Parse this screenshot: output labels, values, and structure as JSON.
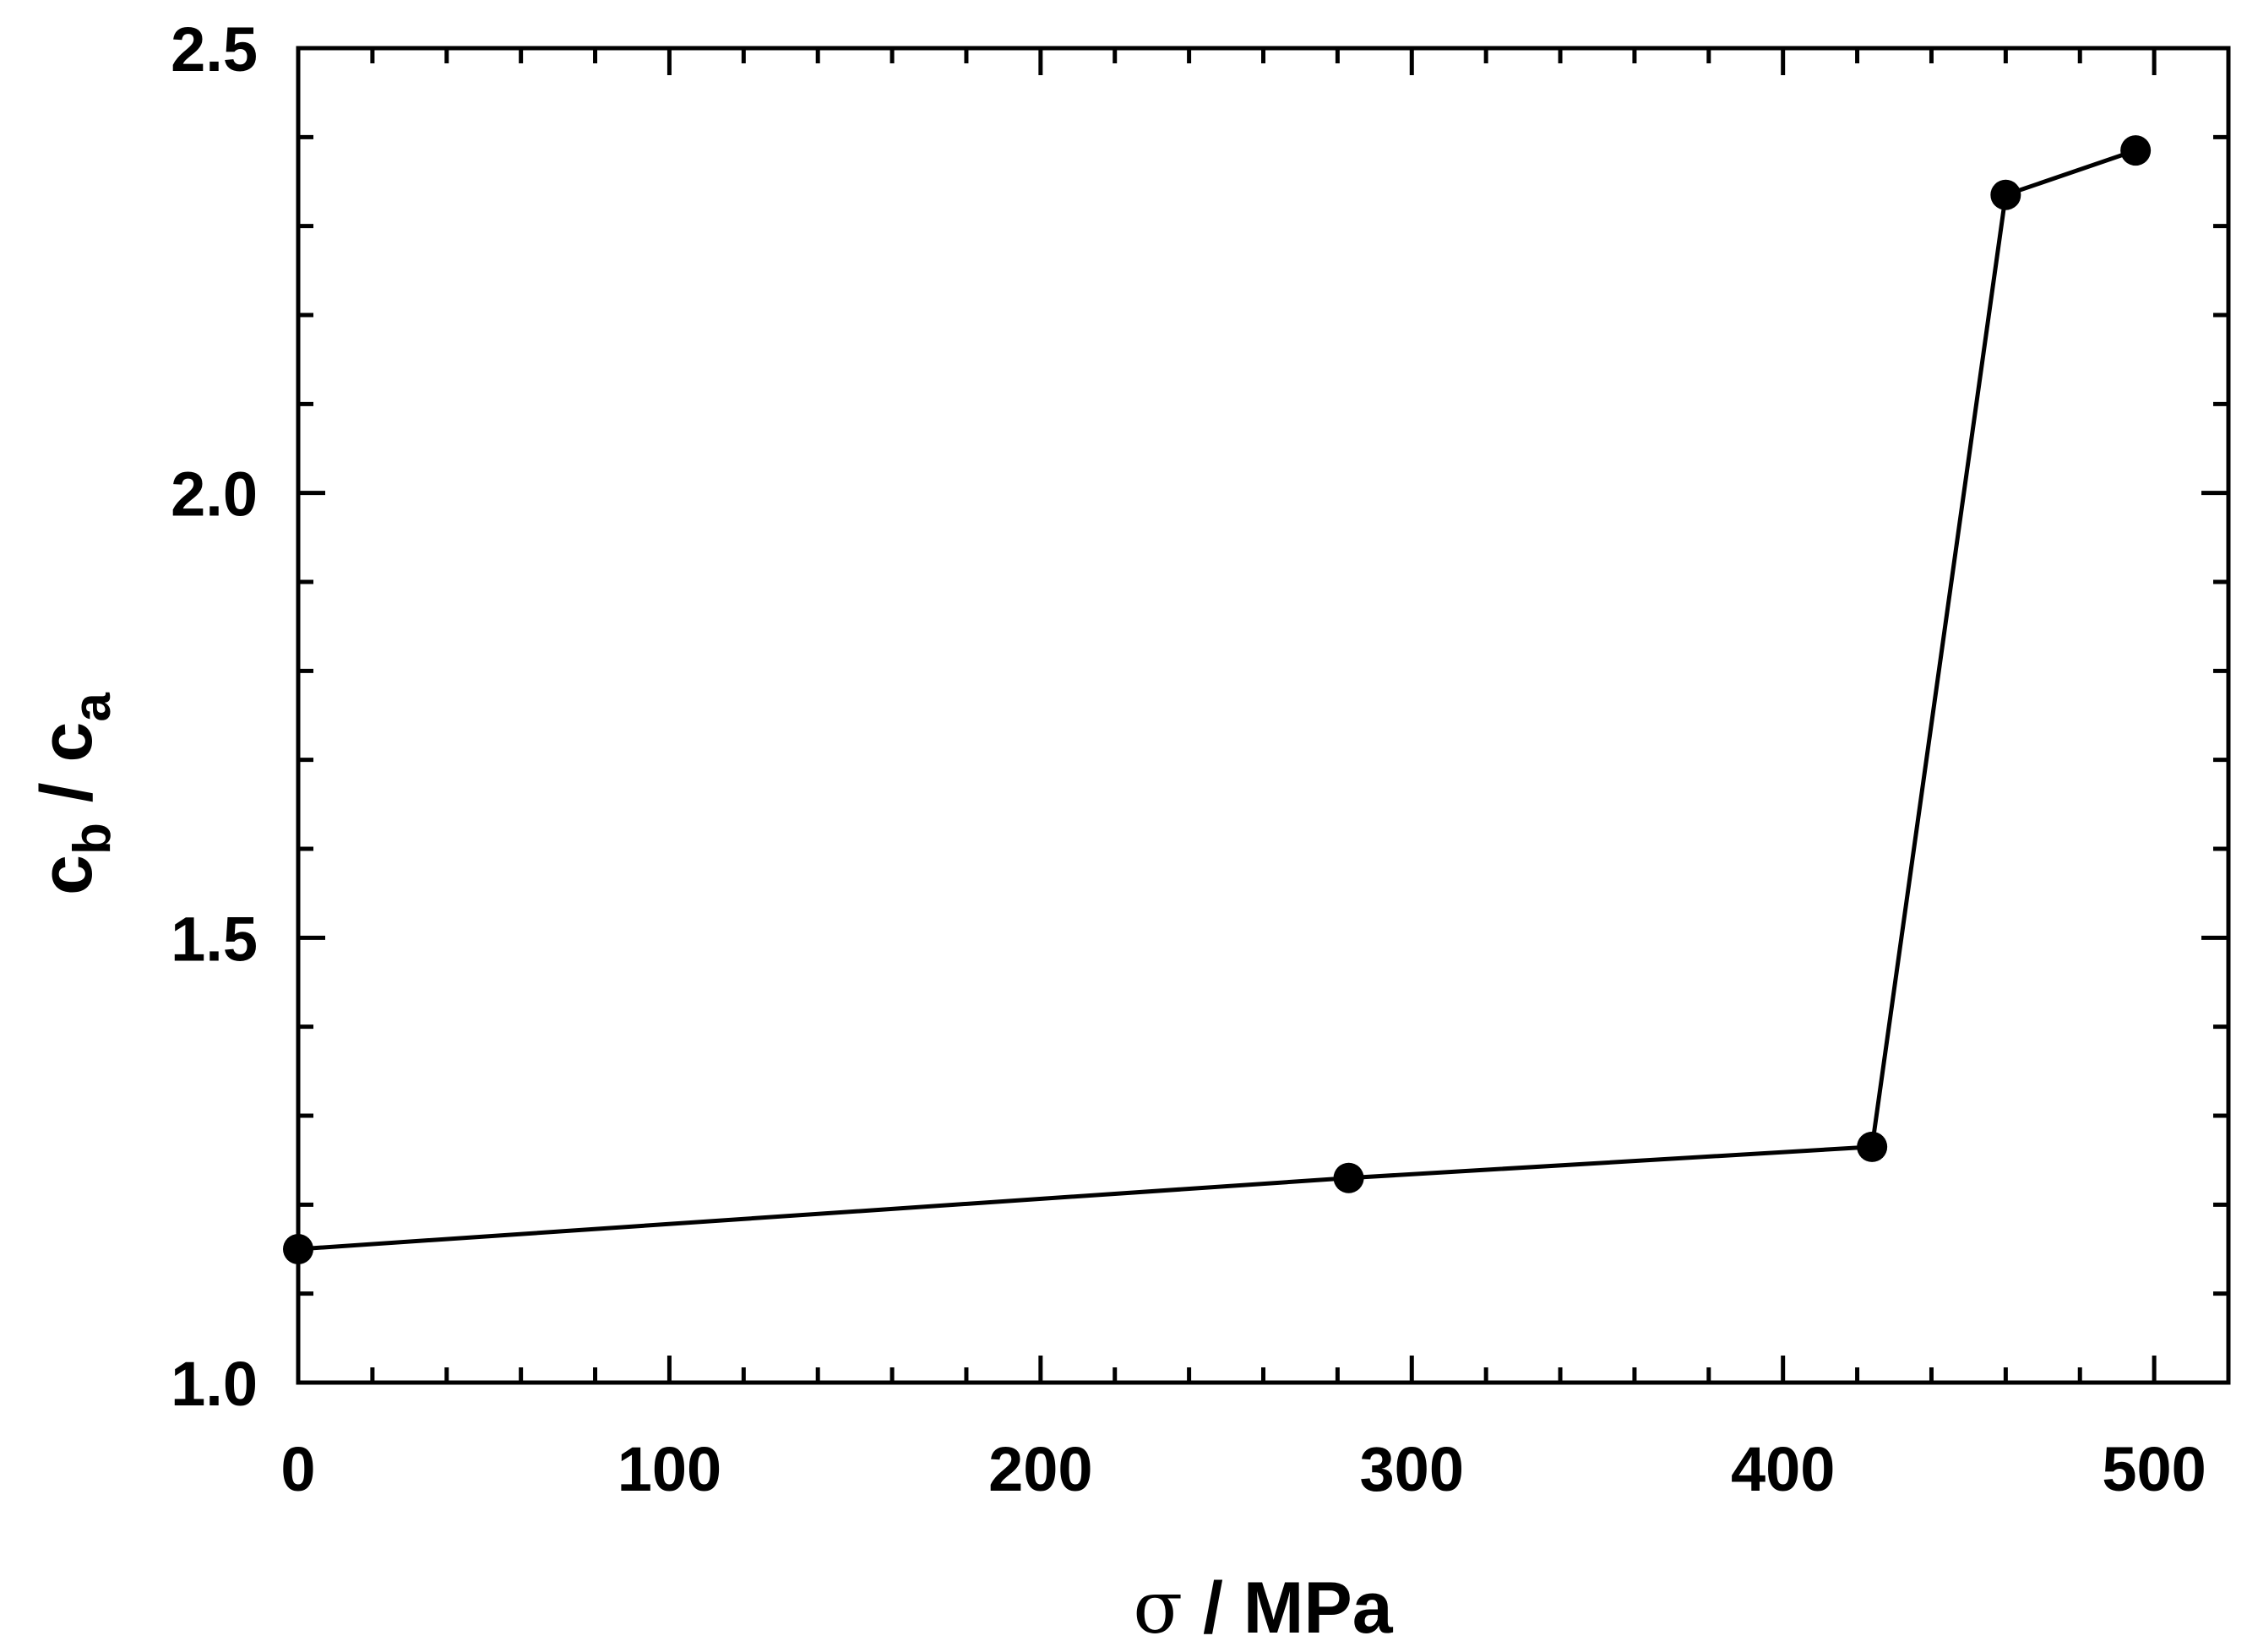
{
  "chart_data": {
    "type": "line",
    "title": "",
    "x": [
      0,
      283,
      424,
      460,
      495
    ],
    "series": [
      {
        "values": [
          1.15,
          1.23,
          1.265,
          2.335,
          2.385
        ]
      }
    ],
    "xlim": [
      0,
      520
    ],
    "ylim": [
      1.0,
      2.5
    ],
    "x_ticks": [
      0,
      100,
      200,
      300,
      400,
      500
    ],
    "x_tick_labels": [
      "0",
      "100",
      "200",
      "300",
      "400",
      "500"
    ],
    "y_ticks": [
      1.0,
      1.5,
      2.0,
      2.5
    ],
    "y_tick_labels": [
      "1.0",
      "1.5",
      "2.0",
      "2.5"
    ],
    "xlabel": {
      "symbol": "σ",
      "text": " / MPa"
    },
    "ylabel": {
      "c1": "c",
      "sub1": "b",
      "sep": " / ",
      "c2": "c",
      "sub2": "a"
    },
    "grid": false,
    "legend": "none",
    "color": "#000000",
    "marker": "filled-circle"
  }
}
